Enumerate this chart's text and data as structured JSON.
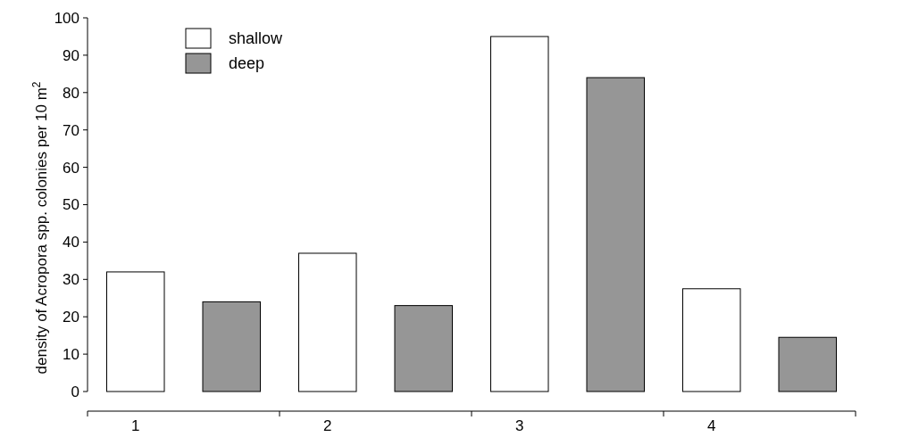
{
  "chart_data": {
    "type": "bar",
    "ylabel": "density of Acropora spp. colonies per 10 m$^{2}$",
    "categories": [
      "1",
      "2",
      "3",
      "4"
    ],
    "series": [
      {
        "name": "shallow",
        "color": "#ffffff",
        "values": [
          32,
          37,
          95,
          27.5
        ]
      },
      {
        "name": "deep",
        "color": "#969696",
        "values": [
          24,
          23,
          84,
          14.5
        ]
      }
    ],
    "ylim": [
      0,
      100
    ],
    "yticks": [
      0,
      10,
      20,
      30,
      40,
      50,
      60,
      70,
      80,
      90,
      100
    ],
    "grid": false,
    "legend": "top left"
  }
}
